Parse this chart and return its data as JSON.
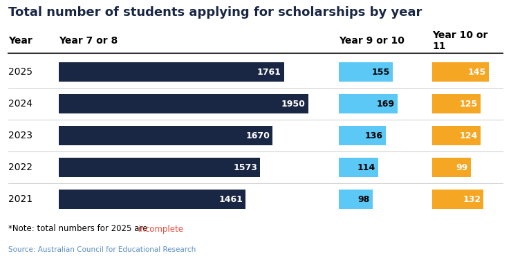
{
  "title": "Total number of students applying for scholarships by year",
  "years": [
    "2025",
    "2024",
    "2023",
    "2022",
    "2021"
  ],
  "year7or8": [
    1761,
    1950,
    1670,
    1573,
    1461
  ],
  "year9or10": [
    155,
    169,
    136,
    114,
    98
  ],
  "year10or11": [
    145,
    125,
    124,
    99,
    132
  ],
  "color_dark": "#1a2744",
  "color_light_blue": "#5bc8f5",
  "color_orange": "#f5a623",
  "note_prefix": "*Note: total numbers for 2025 are ",
  "note_colored": "incomplete",
  "note_incomplete_color": "#e74c3c",
  "source": "Source: Australian Council for Educational Research",
  "background": "#ffffff",
  "title_color": "#1a2744",
  "source_color": "#5a8fc4",
  "header_line_color": "#333333",
  "sep_line_color": "#cccccc"
}
